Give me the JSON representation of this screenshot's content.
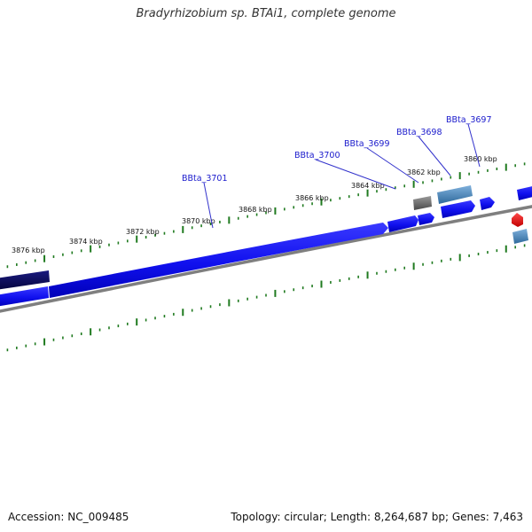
{
  "title": "Bradyrhizobium sp. BTAi1, complete genome",
  "footer": {
    "accession": "Accession: NC_009485",
    "summary": "Topology: circular; Length: 8,264,687 bp; Genes: 7,463"
  },
  "colors": {
    "tick": "#1f7a1f",
    "backbone": "#7f7f7f",
    "gene_label": "#1a1acc",
    "leader": "#3333cc",
    "gene_fill": "#1010ee",
    "gene_dark": "#0a0a66",
    "gene_steel": "#4d86b8",
    "gene_gray": "#6e6e6e",
    "gene_red": "#e00000"
  },
  "kbp_ticks": [
    {
      "label": "3876 kbp",
      "kbp": 3876
    },
    {
      "label": "3874 kbp",
      "kbp": 3874
    },
    {
      "label": "3872 kbp",
      "kbp": 3872
    },
    {
      "label": "3870 kbp",
      "kbp": 3870
    },
    {
      "label": "3868 kbp",
      "kbp": 3868
    },
    {
      "label": "3866 kbp",
      "kbp": 3866
    },
    {
      "label": "3864 kbp",
      "kbp": 3864
    },
    {
      "label": "3862 kbp",
      "kbp": 3862
    },
    {
      "label": "3860 kbp",
      "kbp": 3860
    }
  ],
  "genes": [
    {
      "label": "BBta_3701",
      "kbp": 3870.2
    },
    {
      "label": "BBta_3700",
      "kbp": 3863.6
    },
    {
      "label": "BBta_3699",
      "kbp": 3862.6
    },
    {
      "label": "BBta_3698",
      "kbp": 3861.8
    },
    {
      "label": "BBta_3697",
      "kbp": 3860.2
    }
  ]
}
